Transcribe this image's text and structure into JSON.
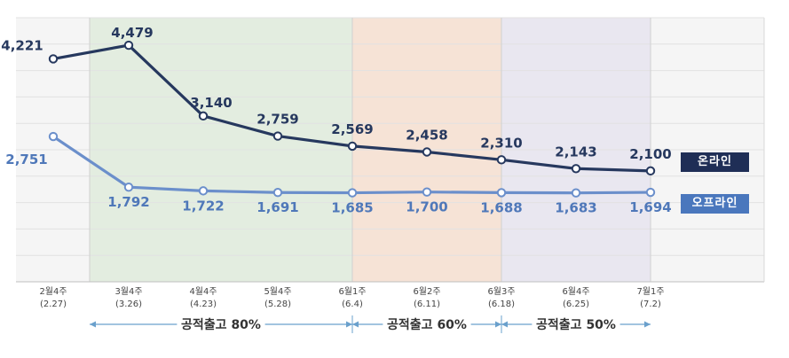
{
  "chart_data": {
    "type": "line",
    "categories": [
      "2월4주\n(2.27)",
      "3월4주\n(3.26)",
      "4월4주\n(4.23)",
      "5월4주\n(5.28)",
      "6월1주\n(6.4)",
      "6월2주\n(6.11)",
      "6월3주\n(6.18)",
      "6월4주\n(6.25)",
      "7월1주\n(7.2)"
    ],
    "category_lines": [
      [
        "2월4주",
        "(2.27)"
      ],
      [
        "3월4주",
        "(3.26)"
      ],
      [
        "4월4주",
        "(4.23)"
      ],
      [
        "5월4주",
        "(5.28)"
      ],
      [
        "6월1주",
        "(6.4)"
      ],
      [
        "6월2주",
        "(6.11)"
      ],
      [
        "6월3주",
        "(6.18)"
      ],
      [
        "6월4주",
        "(6.25)"
      ],
      [
        "7월1주",
        "(7.2)"
      ]
    ],
    "series": [
      {
        "name": "온라인",
        "values": [
          4221,
          4479,
          3140,
          2759,
          2569,
          2458,
          2310,
          2143,
          2100
        ],
        "color": "#26385e",
        "marker_fill": "#ffffff"
      },
      {
        "name": "오프라인",
        "values": [
          2751,
          1792,
          1722,
          1691,
          1685,
          1700,
          1688,
          1683,
          1694
        ],
        "color": "#6b8fcb",
        "marker_fill": "#ffffff"
      }
    ],
    "value_labels": [
      [
        "4,221",
        "4,479",
        "3,140",
        "2,759",
        "2,569",
        "2,458",
        "2,310",
        "2,143",
        "2,100"
      ],
      [
        "2,751",
        "1,792",
        "1,722",
        "1,691",
        "1,685",
        "1,700",
        "1,688",
        "1,683",
        "1,694"
      ]
    ],
    "ylim": [
      0,
      5000
    ],
    "grid": true,
    "legend": "right",
    "title": "",
    "xlabel": "",
    "ylabel": "",
    "periods": [
      {
        "label": "공적출고 80%",
        "from": 1,
        "to": 4,
        "color": "#e3ede0"
      },
      {
        "label": "공적출고 60%",
        "from": 4,
        "to": 6,
        "color": "#f6e3d6"
      },
      {
        "label": "공적출고 50%",
        "from": 6,
        "to": 8,
        "color": "#e9e7f0"
      }
    ],
    "colors": {
      "plot_bg": "#f5f5f5",
      "grid": "#e2e2e2",
      "arrow": "#6aa0cc",
      "label_online": "#26385e",
      "label_offline": "#4f78b9"
    }
  }
}
